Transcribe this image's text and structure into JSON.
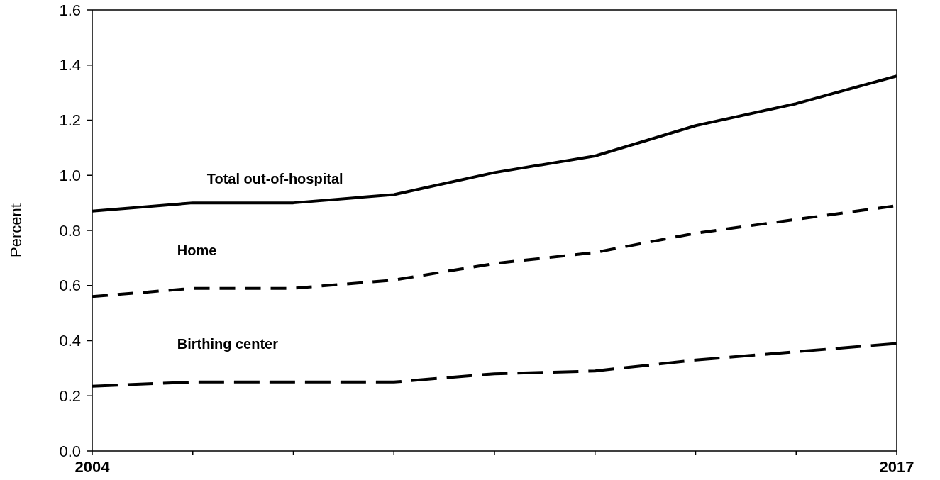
{
  "chart_data": {
    "type": "line",
    "ylabel": "Percent",
    "categories": [
      "2004",
      null,
      null,
      null,
      null,
      null,
      null,
      null,
      "2017"
    ],
    "ylim": [
      0,
      1.6
    ],
    "yticks": [
      {
        "value": 0,
        "label": "0.0"
      },
      {
        "value": 0.2,
        "label": "0.2"
      },
      {
        "value": 0.4,
        "label": "0.4"
      },
      {
        "value": 0.6,
        "label": "0.6"
      },
      {
        "value": 0.8,
        "label": "0.8"
      },
      {
        "value": 1,
        "label": "1.0"
      },
      {
        "value": 1.2,
        "label": "1.2"
      },
      {
        "value": 1.4,
        "label": "1.4"
      },
      {
        "value": 1.6,
        "label": "1.6"
      }
    ],
    "grid": false,
    "marker": "none",
    "series": [
      {
        "name": "Total out-of-hospital",
        "color": "#000000",
        "line_style": "solid",
        "values": [
          0.87,
          0.9,
          0.9,
          0.93,
          1.01,
          1.07,
          1.18,
          1.26,
          1.36
        ]
      },
      {
        "name": "Home",
        "color": "#000000",
        "line_style": "dashed",
        "values": [
          0.56,
          0.59,
          0.59,
          0.62,
          0.68,
          0.72,
          0.79,
          0.84,
          0.89
        ]
      },
      {
        "name": "Birthing center",
        "color": "#000000",
        "line_style": "dashed",
        "values": [
          0.235,
          0.25,
          0.25,
          0.25,
          0.28,
          0.29,
          0.33,
          0.36,
          0.39
        ]
      }
    ]
  }
}
